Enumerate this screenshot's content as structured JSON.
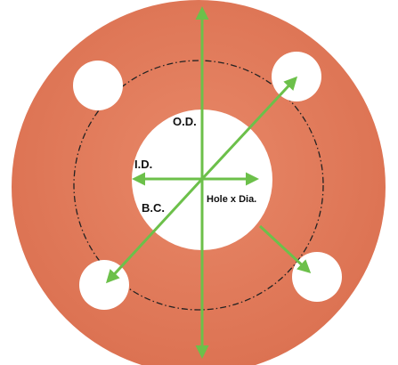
{
  "labels": {
    "od": "O.D.",
    "id": "I.D.",
    "bc": "B.C.",
    "hole": "Hole x Dia."
  },
  "colors": {
    "gasket": "#e07a5a",
    "gasket_edge": "#d46e50",
    "holes": "#ffffff",
    "arrows": "#6cc04a",
    "bolt_circle": "#222222",
    "text": "#111111"
  }
}
